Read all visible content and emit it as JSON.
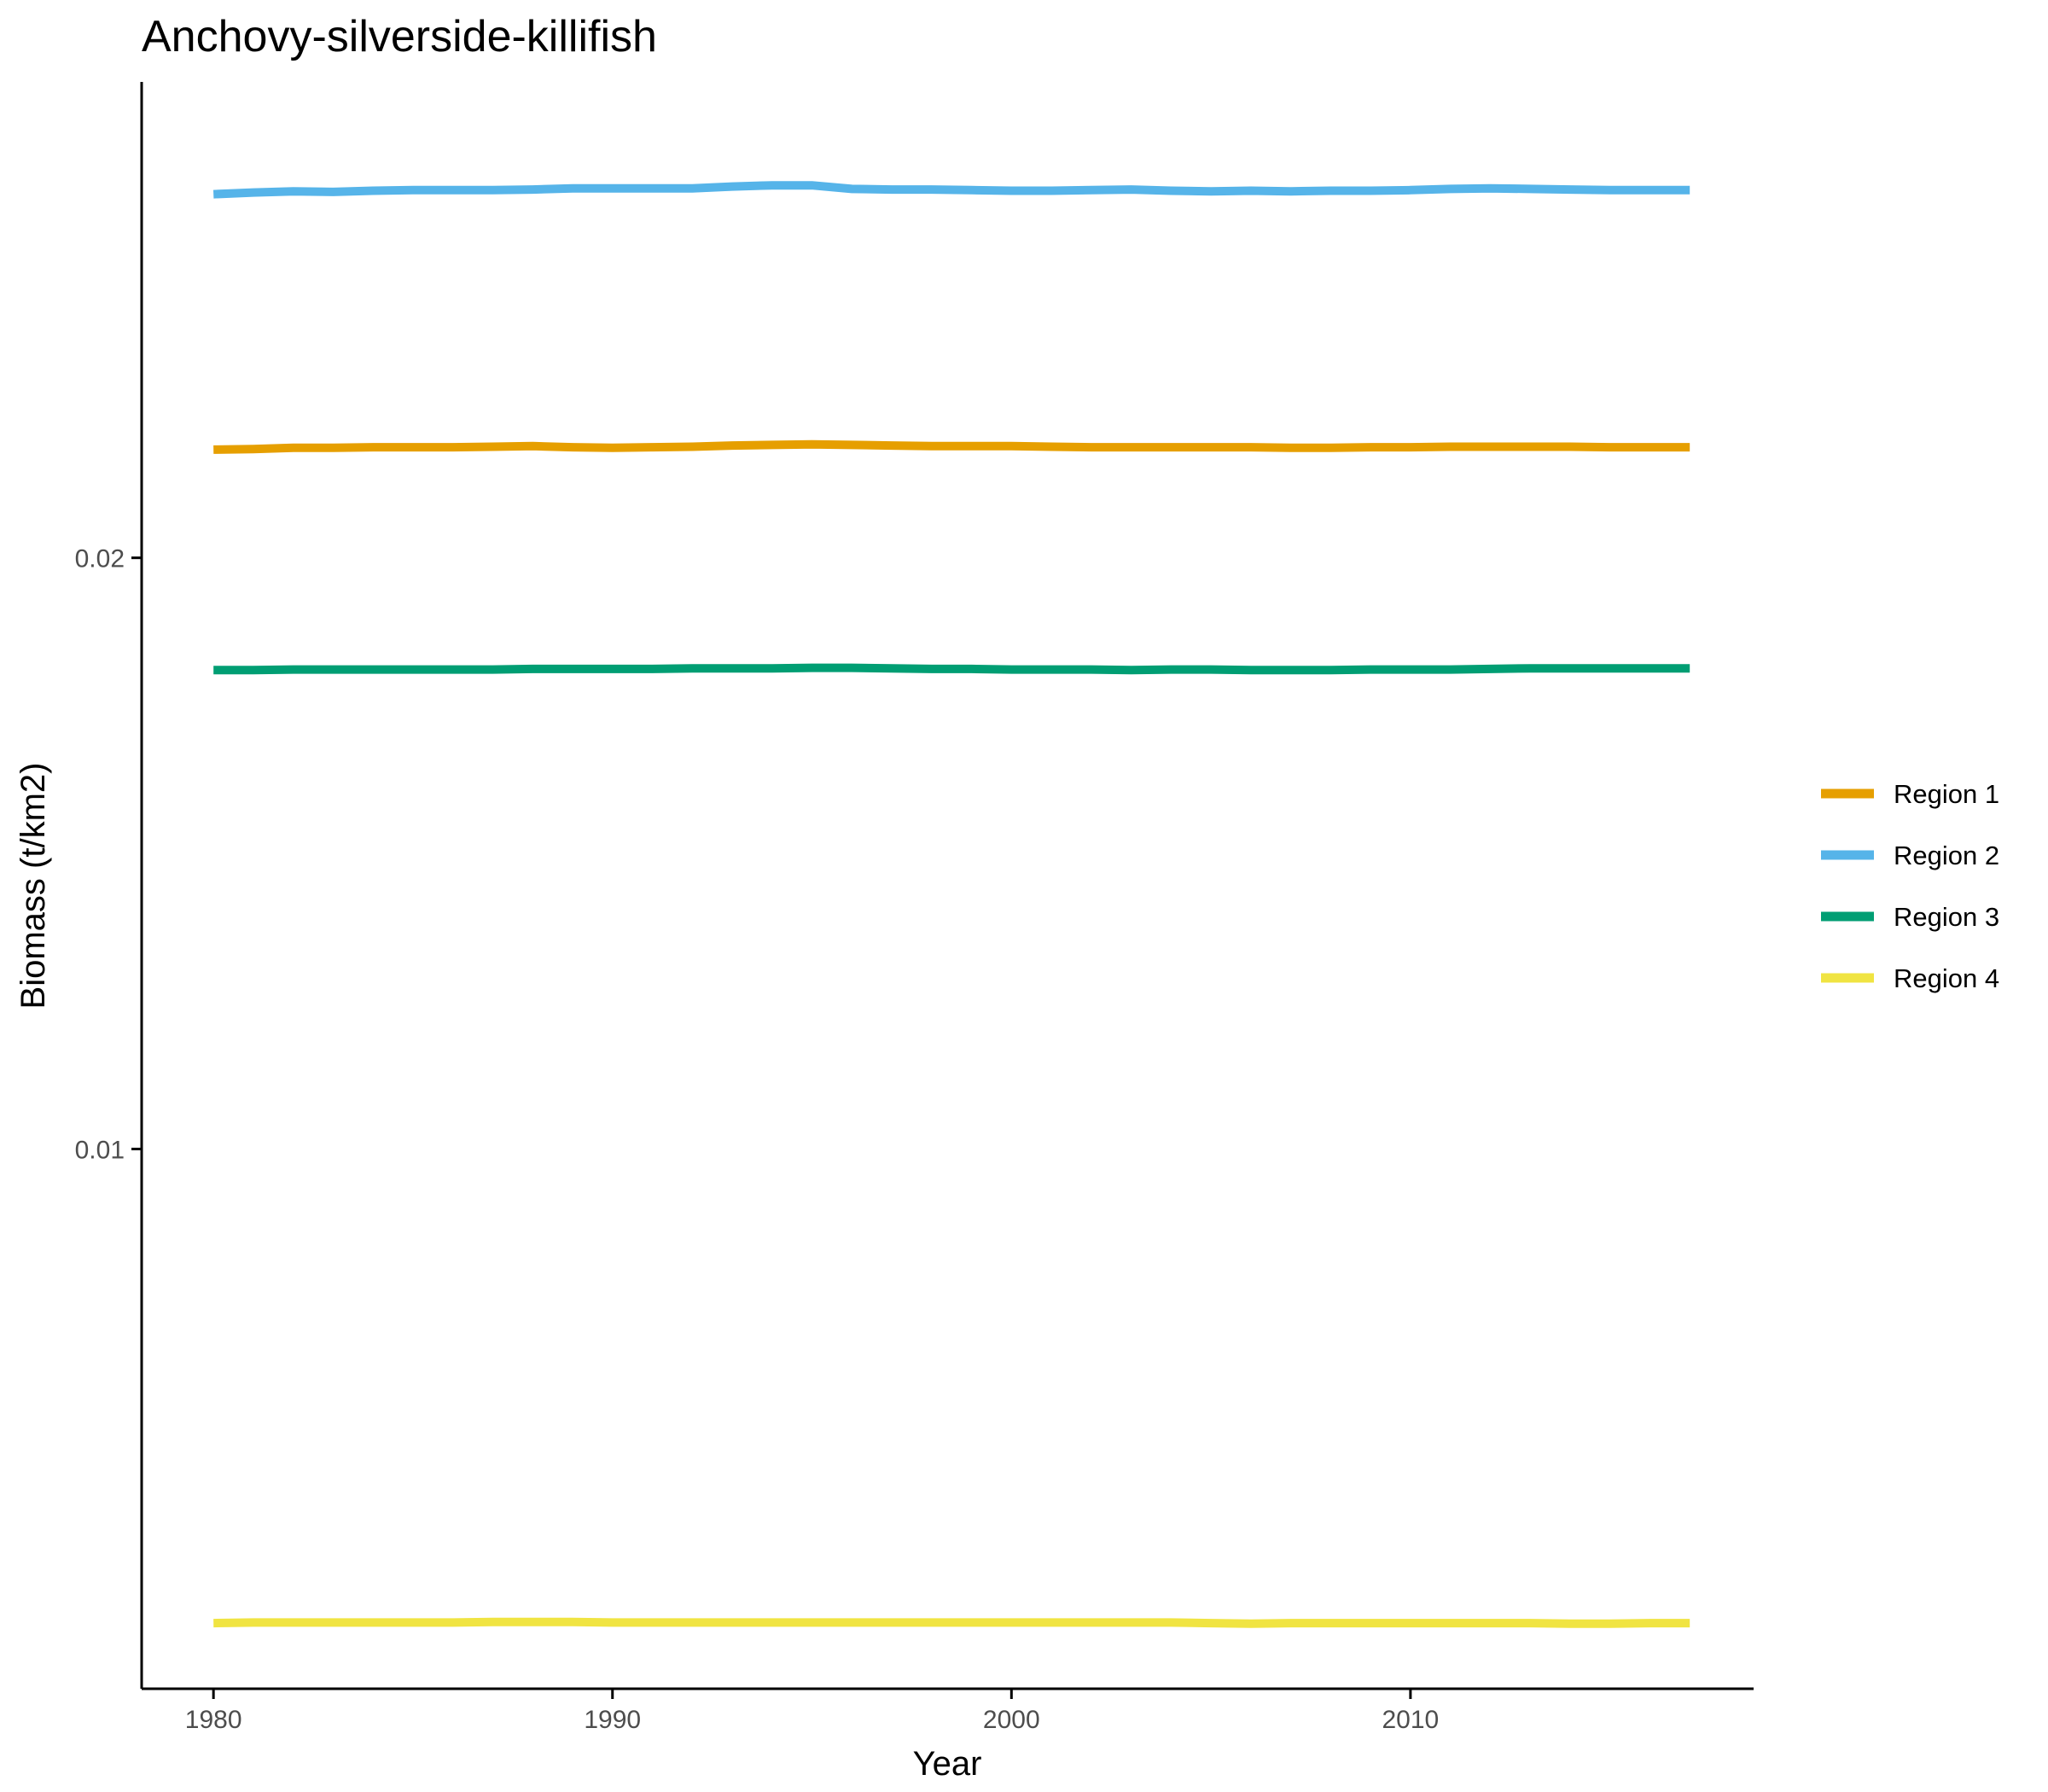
{
  "chart_data": {
    "type": "line",
    "title": "Anchovy-silverside-killifish",
    "xlabel": "Year",
    "ylabel": "Biomass (t/km2)",
    "xlim": [
      1978.2,
      2018.6
    ],
    "ylim": [
      0.00087,
      0.02805
    ],
    "x_ticks": [
      1980,
      1990,
      2000,
      2010
    ],
    "x_tick_labels": [
      "1980",
      "1990",
      "2000",
      "2010"
    ],
    "y_ticks": [
      0.01,
      0.02
    ],
    "y_tick_labels": [
      "0.01",
      "0.02"
    ],
    "grid": false,
    "legend_position": "right",
    "x": [
      1980,
      1981,
      1982,
      1983,
      1984,
      1985,
      1986,
      1987,
      1988,
      1989,
      1990,
      1991,
      1992,
      1993,
      1994,
      1995,
      1996,
      1997,
      1998,
      1999,
      2000,
      2001,
      2002,
      2003,
      2004,
      2005,
      2006,
      2007,
      2008,
      2009,
      2010,
      2011,
      2012,
      2013,
      2014,
      2015,
      2016,
      2017
    ],
    "series": [
      {
        "name": "Region 1",
        "color": "#E69F00",
        "values": [
          0.02183,
          0.02184,
          0.02186,
          0.02186,
          0.02187,
          0.02187,
          0.02187,
          0.02188,
          0.02189,
          0.02187,
          0.02186,
          0.02187,
          0.02188,
          0.0219,
          0.02191,
          0.02192,
          0.02191,
          0.0219,
          0.02189,
          0.02189,
          0.02189,
          0.02188,
          0.02187,
          0.02187,
          0.02187,
          0.02187,
          0.02187,
          0.02186,
          0.02186,
          0.02187,
          0.02187,
          0.02188,
          0.02188,
          0.02188,
          0.02188,
          0.02187,
          0.02187,
          0.02187
        ]
      },
      {
        "name": "Region 2",
        "color": "#56B4E9",
        "values": [
          0.02615,
          0.02618,
          0.0262,
          0.02619,
          0.02621,
          0.02622,
          0.02622,
          0.02622,
          0.02623,
          0.02625,
          0.02625,
          0.02625,
          0.02625,
          0.02628,
          0.0263,
          0.0263,
          0.02624,
          0.02623,
          0.02623,
          0.02622,
          0.02621,
          0.02621,
          0.02622,
          0.02623,
          0.02621,
          0.0262,
          0.02621,
          0.0262,
          0.02621,
          0.02621,
          0.02622,
          0.02624,
          0.02625,
          0.02624,
          0.02623,
          0.02622,
          0.02622,
          0.02622
        ]
      },
      {
        "name": "Region 3",
        "color": "#009E73",
        "values": [
          0.0181,
          0.0181,
          0.01811,
          0.01811,
          0.01811,
          0.01811,
          0.01811,
          0.01811,
          0.01812,
          0.01812,
          0.01812,
          0.01812,
          0.01813,
          0.01813,
          0.01813,
          0.01814,
          0.01814,
          0.01813,
          0.01812,
          0.01812,
          0.01811,
          0.01811,
          0.01811,
          0.0181,
          0.01811,
          0.01811,
          0.0181,
          0.0181,
          0.0181,
          0.01811,
          0.01811,
          0.01811,
          0.01812,
          0.01813,
          0.01813,
          0.01813,
          0.01813,
          0.01813
        ]
      },
      {
        "name": "Region 4",
        "color": "#F0E442",
        "values": [
          0.00198,
          0.00199,
          0.00199,
          0.00199,
          0.00199,
          0.00199,
          0.00199,
          0.002,
          0.002,
          0.002,
          0.00199,
          0.00199,
          0.00199,
          0.00199,
          0.00199,
          0.00199,
          0.00199,
          0.00199,
          0.00199,
          0.00199,
          0.00199,
          0.00199,
          0.00199,
          0.00199,
          0.00199,
          0.00198,
          0.00197,
          0.00198,
          0.00198,
          0.00198,
          0.00198,
          0.00198,
          0.00198,
          0.00198,
          0.00197,
          0.00197,
          0.00198,
          0.00198
        ]
      }
    ]
  }
}
